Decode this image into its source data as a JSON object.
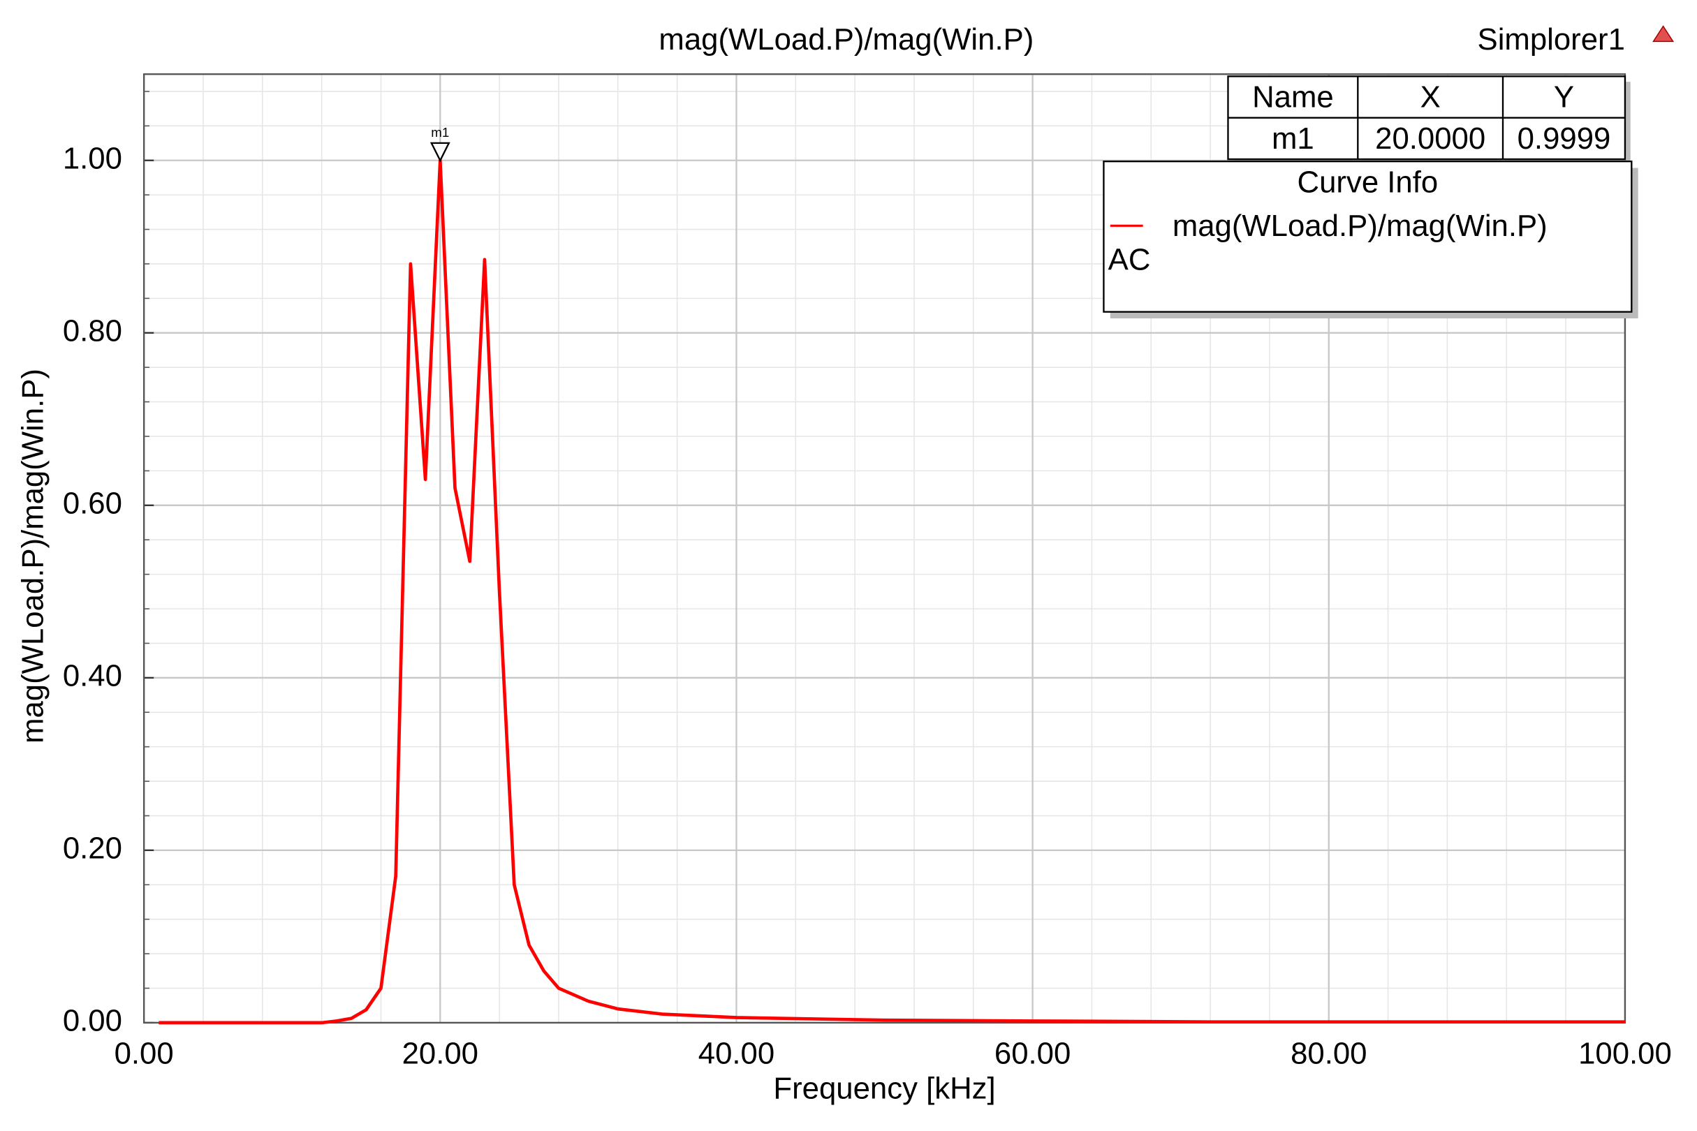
{
  "chart_data": {
    "type": "line",
    "title": "mag(WLoad.P)/mag(Win.P)",
    "app_name": "Simplorer1",
    "x_label": "Frequency [kHz]",
    "y_label": "mag(WLoad.P)/mag(Win.P)",
    "x": [
      1,
      12,
      13,
      14,
      15,
      16,
      17,
      18,
      19,
      20,
      21,
      22,
      23,
      24,
      25,
      26,
      27,
      28,
      30,
      32,
      35,
      40,
      50,
      60,
      72,
      80,
      100
    ],
    "series": [
      {
        "name": "mag(WLoad.P)/mag(Win.P)",
        "solution": "AC",
        "color": "#ff0000",
        "values": [
          0,
          0,
          0.002,
          0.005,
          0.015,
          0.04,
          0.17,
          0.88,
          0.63,
          0.9999,
          0.62,
          0.535,
          0.885,
          0.5,
          0.16,
          0.09,
          0.06,
          0.04,
          0.025,
          0.016,
          0.01,
          0.006,
          0.003,
          0.002,
          0.001,
          0.001,
          0.001
        ]
      }
    ],
    "xlim": [
      0,
      100
    ],
    "ylim": [
      0,
      1.1
    ],
    "xticks": [
      {
        "value": 0,
        "label": "0.00"
      },
      {
        "value": 20,
        "label": "20.00"
      },
      {
        "value": 40,
        "label": "40.00"
      },
      {
        "value": 60,
        "label": "60.00"
      },
      {
        "value": 80,
        "label": "80.00"
      },
      {
        "value": 100,
        "label": "100.00"
      }
    ],
    "yticks": [
      {
        "value": 0,
        "label": "0.00"
      },
      {
        "value": 0.2,
        "label": "0.20"
      },
      {
        "value": 0.4,
        "label": "0.40"
      },
      {
        "value": 0.6,
        "label": "0.60"
      },
      {
        "value": 0.8,
        "label": "0.80"
      },
      {
        "value": 1,
        "label": "1.00"
      }
    ],
    "grid": true,
    "minor_divisions": 5,
    "legend_title": "Curve Info",
    "marker_table": {
      "columns": [
        "Name",
        "X",
        "Y"
      ]
    },
    "markers": [
      {
        "name": "m1",
        "x": 20,
        "y": 0.9999,
        "x_label": "20.0000",
        "y_label": "0.9999"
      }
    ]
  }
}
